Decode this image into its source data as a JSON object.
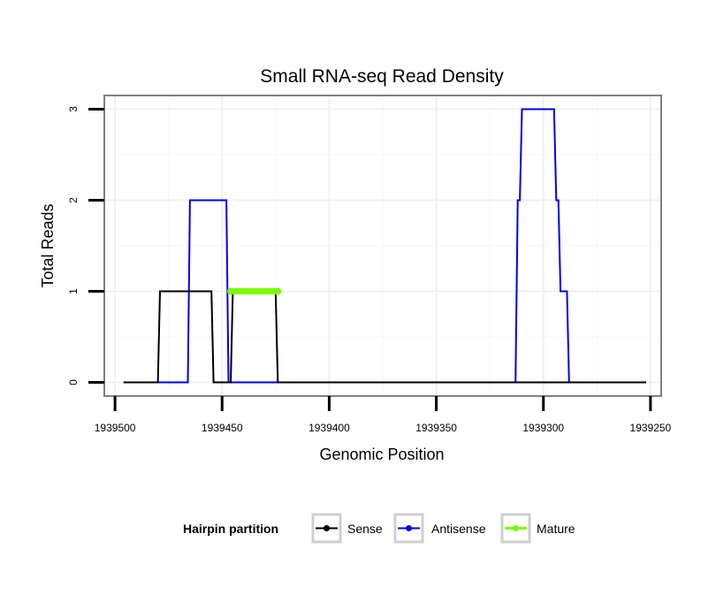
{
  "chart_data": {
    "type": "line",
    "title": "Small RNA-seq Read Density",
    "xlabel": "Genomic Position",
    "ylabel": "Total Reads",
    "x_reversed": true,
    "xlim": [
      1939505,
      1939245
    ],
    "ylim": [
      -0.15,
      3.15
    ],
    "x_ticks": [
      1939500,
      1939450,
      1939400,
      1939350,
      1939300,
      1939250
    ],
    "x_tick_labels": [
      "1939500",
      "1939450",
      "1939400",
      "1939350",
      "1939300",
      "1939250"
    ],
    "y_ticks": [
      0,
      1,
      2,
      3
    ],
    "y_tick_labels": [
      "0",
      "1",
      "2",
      "3"
    ],
    "grid": true,
    "legend": {
      "title": "Hairpin partition",
      "position": "bottom",
      "entries": [
        "Sense",
        "Antisense",
        "Mature"
      ]
    },
    "series": [
      {
        "name": "Antisense",
        "color": "#0000ee",
        "points": [
          [
            1939496,
            0
          ],
          [
            1939466,
            0
          ],
          [
            1939465,
            2
          ],
          [
            1939448,
            2
          ],
          [
            1939447,
            0
          ],
          [
            1939313,
            0
          ],
          [
            1939312,
            2
          ],
          [
            1939311,
            2
          ],
          [
            1939310,
            3
          ],
          [
            1939295,
            3
          ],
          [
            1939294,
            2
          ],
          [
            1939293,
            2
          ],
          [
            1939292,
            1
          ],
          [
            1939289,
            1
          ],
          [
            1939288,
            0
          ],
          [
            1939252,
            0
          ]
        ]
      },
      {
        "name": "Sense",
        "color": "#000000",
        "points": [
          [
            1939496,
            0
          ],
          [
            1939480,
            0
          ],
          [
            1939479,
            1
          ],
          [
            1939455,
            1
          ],
          [
            1939454,
            0
          ],
          [
            1939446,
            0
          ],
          [
            1939445,
            1
          ],
          [
            1939425,
            1
          ],
          [
            1939424,
            0
          ],
          [
            1939252,
            0
          ]
        ]
      },
      {
        "name": "Mature",
        "color": "#7cfc00",
        "points": [
          [
            1939446,
            1
          ],
          [
            1939424,
            1
          ]
        ]
      }
    ]
  }
}
